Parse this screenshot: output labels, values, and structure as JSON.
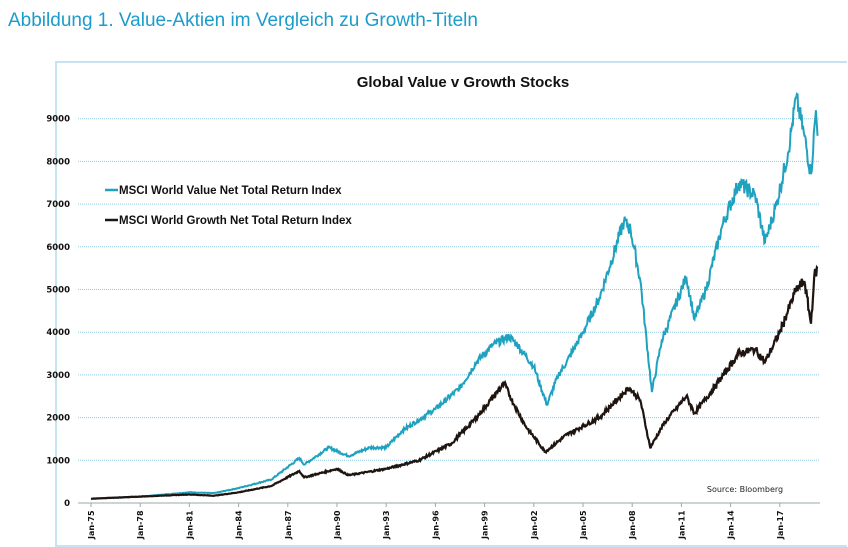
{
  "heading": "Abbildung 1. Value-Aktien im Vergleich zu Growth-Titeln",
  "chart_data": {
    "type": "line",
    "title": "Global Value v Growth Stocks",
    "source": "Source: Bloomberg",
    "xlabel": "",
    "ylabel": "",
    "ylim": [
      0,
      9500
    ],
    "yticks": [
      0,
      1000,
      2000,
      3000,
      4000,
      5000,
      6000,
      7000,
      8000,
      9000
    ],
    "xticks": [
      "Jan-75",
      "Jan-78",
      "Jan-81",
      "Jan-84",
      "Jan-87",
      "Jan-90",
      "Jan-93",
      "Jan-96",
      "Jan-99",
      "Jan-02",
      "Jan-05",
      "Jan-08",
      "Jan-11",
      "Jan-14",
      "Jan-17"
    ],
    "xlim": [
      1975,
      2019.4
    ],
    "grid": "horizontal dotted",
    "legend": "top-left",
    "series": [
      {
        "name": "MSCI World Value Net Total Return Index",
        "color": "#1fa2bf",
        "x": [
          1975,
          1978,
          1981,
          1982.5,
          1984,
          1986,
          1987.7,
          1988,
          1989.5,
          1990.7,
          1992,
          1993,
          1994,
          1996,
          1997.5,
          1998.5,
          1999.5,
          2000.5,
          2001,
          2002,
          2002.8,
          2003.5,
          2004,
          2005,
          2006,
          2007.5,
          2007.9,
          2008.5,
          2009.2,
          2009.8,
          2011.3,
          2011.8,
          2012.5,
          2013.5,
          2014.5,
          2015.5,
          2016.1,
          2016.8,
          2017.5,
          2018,
          2018.5,
          2018.9,
          2019.2,
          2019.3
        ],
        "y": [
          100,
          150,
          250,
          230,
          350,
          550,
          1050,
          900,
          1300,
          1100,
          1300,
          1300,
          1700,
          2200,
          2700,
          3300,
          3700,
          3900,
          3700,
          3200,
          2300,
          3000,
          3300,
          4000,
          4800,
          6600,
          6400,
          5200,
          2600,
          3800,
          5300,
          4300,
          5000,
          6500,
          7500,
          7200,
          6100,
          7000,
          8200,
          9500,
          8600,
          7700,
          9200,
          8600
        ]
      },
      {
        "name": "MSCI World Growth Net Total Return Index",
        "color": "#1e1410",
        "x": [
          1975,
          1981,
          1982.5,
          1984,
          1986,
          1987.7,
          1988,
          1990,
          1990.7,
          1993,
          1995,
          1997,
          1998.5,
          2000.2,
          2000.8,
          2001.5,
          2002.7,
          2004,
          2006,
          2007.8,
          2008.5,
          2009.1,
          2010,
          2011.3,
          2011.8,
          2013,
          2014.5,
          2015.5,
          2016.1,
          2017,
          2018,
          2018.5,
          2018.9,
          2019.1,
          2019.3
        ],
        "y": [
          100,
          200,
          170,
          250,
          400,
          750,
          600,
          800,
          650,
          800,
          1000,
          1400,
          2000,
          2800,
          2300,
          1800,
          1200,
          1600,
          2000,
          2700,
          2400,
          1300,
          1900,
          2500,
          2100,
          2700,
          3500,
          3600,
          3300,
          4000,
          5000,
          5200,
          4200,
          5300,
          5500
        ]
      }
    ]
  }
}
